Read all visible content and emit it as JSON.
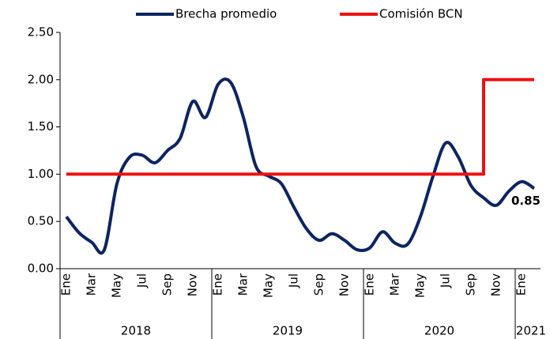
{
  "chart_data": {
    "type": "line",
    "categories": [
      "Ene",
      null,
      "Mar",
      null,
      "May",
      null,
      "Jul",
      null,
      "Sep",
      null,
      "Nov",
      null,
      "Ene",
      null,
      "Mar",
      null,
      "May",
      null,
      "Jul",
      null,
      "Sep",
      null,
      "Nov",
      null,
      "Ene",
      null,
      "Mar",
      null,
      "May",
      null,
      "Jul",
      null,
      "Sep",
      null,
      "Nov",
      null,
      "Ene",
      null
    ],
    "year_labels": [
      "2018",
      "2019",
      "2020",
      "2021"
    ],
    "series": [
      {
        "name": "Brecha promedio",
        "color": "#0c2461",
        "smooth": true,
        "values": [
          0.55,
          0.38,
          0.28,
          0.2,
          0.9,
          1.18,
          1.2,
          1.12,
          1.25,
          1.38,
          1.77,
          1.6,
          1.95,
          1.97,
          1.6,
          1.08,
          0.98,
          0.9,
          0.65,
          0.42,
          0.3,
          0.37,
          0.3,
          0.2,
          0.22,
          0.39,
          0.27,
          0.26,
          0.55,
          0.98,
          1.33,
          1.18,
          0.88,
          0.75,
          0.67,
          0.82,
          0.92,
          0.85
        ],
        "value_labels": [
          null,
          null,
          null,
          null,
          null,
          null,
          null,
          null,
          null,
          null,
          null,
          null,
          null,
          null,
          null,
          null,
          null,
          null,
          null,
          null,
          null,
          null,
          null,
          null,
          null,
          null,
          null,
          null,
          null,
          null,
          null,
          null,
          null,
          null,
          null,
          null,
          null,
          "0.85"
        ]
      },
      {
        "name": "Comisión BCN",
        "color": "#ee1111",
        "step": "pre",
        "values": [
          1,
          1,
          1,
          1,
          1,
          1,
          1,
          1,
          1,
          1,
          1,
          1,
          1,
          1,
          1,
          1,
          1,
          1,
          1,
          1,
          1,
          1,
          1,
          1,
          1,
          1,
          1,
          1,
          1,
          1,
          1,
          1,
          1,
          2,
          2,
          2,
          2,
          2
        ]
      }
    ],
    "ylim": [
      0,
      2.5
    ],
    "yticks": [
      {
        "value": 0,
        "label": "0.00"
      },
      {
        "value": 0.5,
        "label": "0.50"
      },
      {
        "value": 1,
        "label": "1.00"
      },
      {
        "value": 1.5,
        "label": "1.50"
      },
      {
        "value": 2,
        "label": "2.00"
      },
      {
        "value": 2.5,
        "label": "2.50"
      }
    ],
    "legend": "top"
  }
}
